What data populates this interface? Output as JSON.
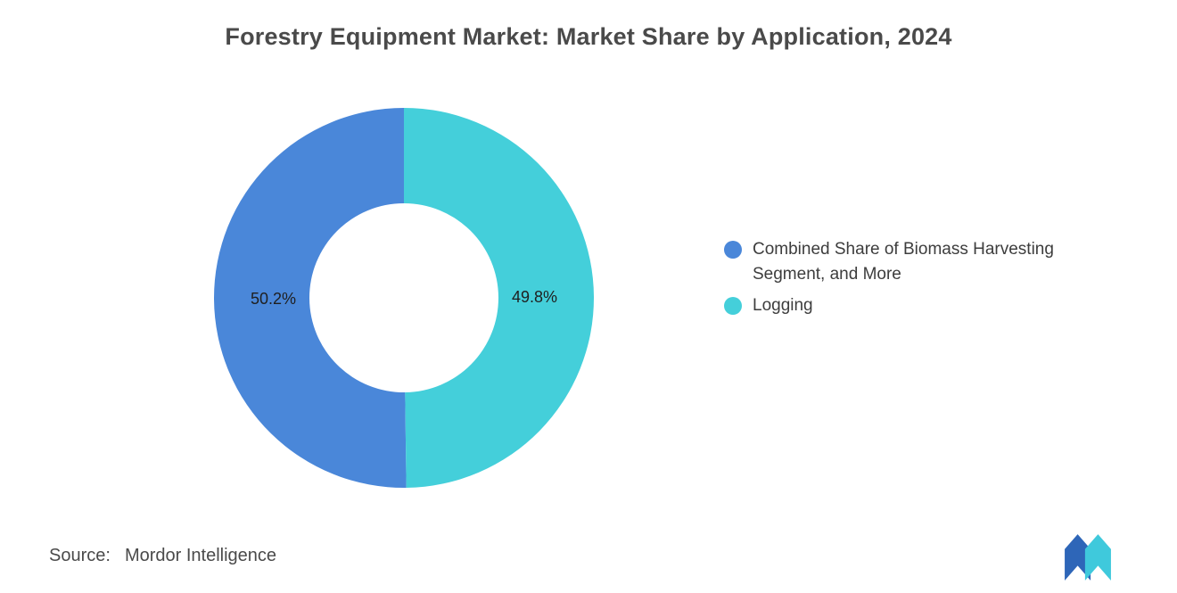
{
  "title": "Forestry Equipment Market: Market Share by Application, 2024",
  "chart_data": {
    "type": "pie",
    "subtype": "donut",
    "title": "Forestry Equipment Market: Market Share by Application, 2024",
    "direction": "counterclockwise",
    "start_angle_deg": 0,
    "outer_radius": 213,
    "inner_radius": 106,
    "labels": "inside",
    "legend_position": "right",
    "segments": [
      {
        "label": "Combined Share of Biomass Harvesting Segment, and More",
        "value": 50.2,
        "display": "50.2%",
        "color": "#4a87d9"
      },
      {
        "label": "Logging",
        "value": 49.8,
        "display": "49.8%",
        "color": "#44cfda"
      }
    ]
  },
  "source": {
    "label": "Source:",
    "value": "Mordor Intelligence"
  },
  "logo": {
    "name": "mordor-intelligence-logo",
    "colors": {
      "blue": "#2e66b8",
      "teal": "#3fc9dc"
    }
  }
}
